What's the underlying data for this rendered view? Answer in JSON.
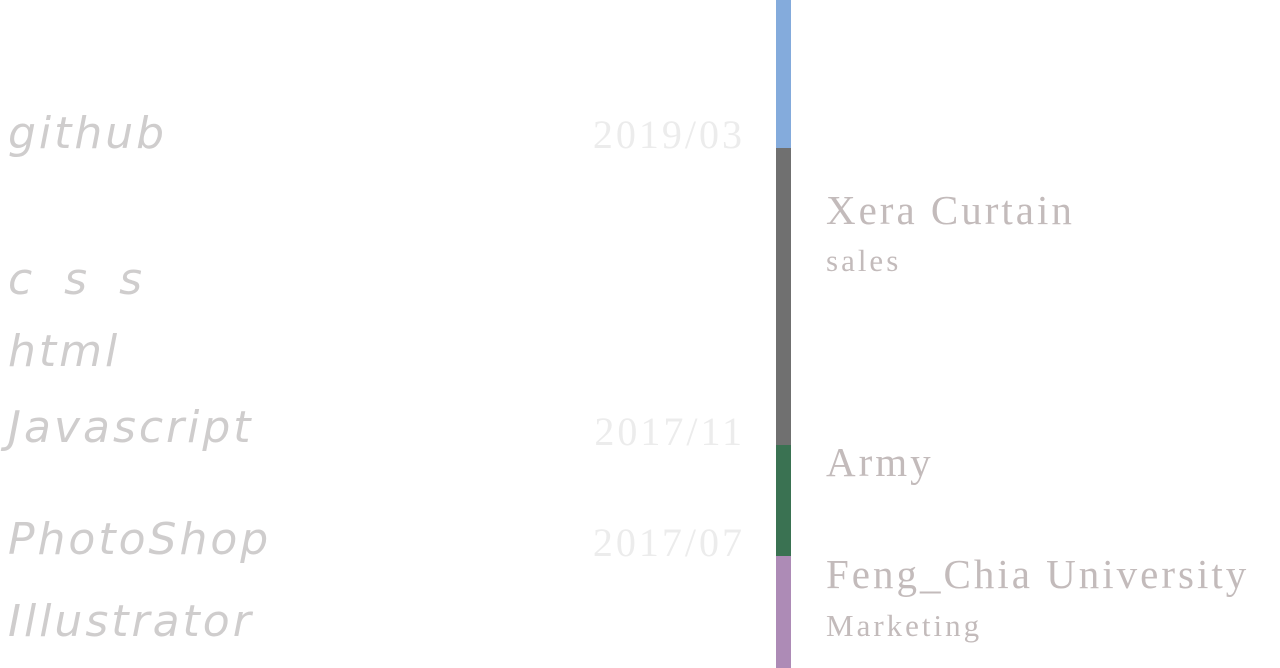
{
  "skills": [
    "github",
    "c s s",
    "html",
    "Javascript",
    "PhotoShop",
    "Illustrator"
  ],
  "dates": [
    "2019/03",
    "2017/11",
    "2017/07"
  ],
  "timeline": {
    "colors": [
      "#84abdc",
      "#707070",
      "#3a7252",
      "#ad8bb6"
    ],
    "entries": [
      {
        "org": "Xera Curtain",
        "role": "sales"
      },
      {
        "org": "Army"
      },
      {
        "org": "Feng_Chia University",
        "role": "Marketing"
      }
    ]
  }
}
